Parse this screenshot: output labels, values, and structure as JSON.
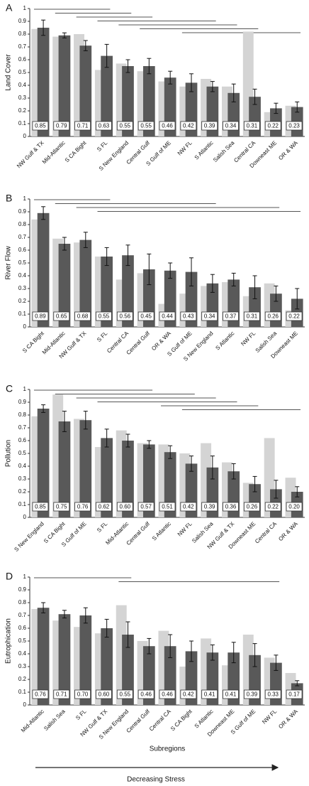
{
  "chart_data": [
    {
      "type": "bar",
      "panel": "A",
      "y_label": "Land Cover",
      "ylim": [
        0,
        1
      ],
      "yticks": [
        0,
        0.1,
        0.2,
        0.3,
        0.4,
        0.5,
        0.6,
        0.7,
        0.8,
        0.9,
        1
      ],
      "categories": [
        "NW Gulf & TX",
        "Mid-Atlantic",
        "S CA Bight",
        "S FL",
        "S New England",
        "Central Gulf",
        "S Gulf of ME",
        "NW FL",
        "S Atlantic",
        "Salish Sea",
        "Central CA",
        "Downeast ME",
        "OR & WA"
      ],
      "series": [
        {
          "color": "#d4d4d4",
          "values": [
            0.84,
            0.78,
            0.8,
            0.52,
            0.57,
            0.51,
            0.43,
            0.39,
            0.45,
            0.39,
            0.82,
            0.19,
            0.24
          ]
        },
        {
          "color": "#595959",
          "values": [
            0.85,
            0.79,
            0.71,
            0.63,
            0.55,
            0.55,
            0.46,
            0.42,
            0.39,
            0.34,
            0.31,
            0.22,
            0.23
          ],
          "errors": [
            0.06,
            0.02,
            0.04,
            0.09,
            0.05,
            0.06,
            0.05,
            0.07,
            0.04,
            0.07,
            0.06,
            0.04,
            0.04
          ],
          "value_labels": [
            "0.85",
            "0.79",
            "0.71",
            "0.63",
            "0.55",
            "0.55",
            "0.46",
            "0.42",
            "0.39",
            "0.34",
            "0.31",
            "0.22",
            "0.23"
          ]
        }
      ],
      "groups": [
        [
          0,
          3
        ],
        [
          1,
          4
        ],
        [
          2,
          5
        ],
        [
          3,
          8
        ],
        [
          4,
          9
        ],
        [
          5,
          10
        ],
        [
          7,
          12
        ]
      ]
    },
    {
      "type": "bar",
      "panel": "B",
      "y_label": "River Flow",
      "ylim": [
        0,
        1
      ],
      "yticks": [
        0,
        0.1,
        0.2,
        0.3,
        0.4,
        0.5,
        0.6,
        0.7,
        0.8,
        0.9,
        1
      ],
      "categories": [
        "S CA Bight",
        "Mid-Atlantic",
        "NW Gulf & TX",
        "S FL",
        "Central CA",
        "Central Gulf",
        "OR & WA",
        "S Gulf of ME",
        "S New England",
        "S Atlantic",
        "NW FL",
        "Salish Sea",
        "Downeast ME"
      ],
      "series": [
        {
          "color": "#d4d4d4",
          "values": [
            0.84,
            0.69,
            0.66,
            0.55,
            0.37,
            0.42,
            0.18,
            0.26,
            0.32,
            0.35,
            0.24,
            0.34,
            0.13
          ]
        },
        {
          "color": "#595959",
          "values": [
            0.89,
            0.65,
            0.68,
            0.55,
            0.56,
            0.45,
            0.44,
            0.43,
            0.34,
            0.37,
            0.31,
            0.26,
            0.22
          ],
          "errors": [
            0.05,
            0.05,
            0.06,
            0.07,
            0.08,
            0.12,
            0.06,
            0.11,
            0.07,
            0.05,
            0.09,
            0.06,
            0.08
          ],
          "value_labels": [
            "0.89",
            "0.65",
            "0.68",
            "0.55",
            "0.56",
            "0.45",
            "0.44",
            "0.43",
            "0.34",
            "0.37",
            "0.31",
            "0.26",
            "0.22"
          ]
        }
      ],
      "groups": [
        [
          0,
          3
        ],
        [
          1,
          8
        ],
        [
          2,
          11
        ],
        [
          3,
          12
        ]
      ]
    },
    {
      "type": "bar",
      "panel": "C",
      "y_label": "Pollution",
      "ylim": [
        0,
        1
      ],
      "yticks": [
        0,
        0.1,
        0.2,
        0.3,
        0.4,
        0.5,
        0.6,
        0.7,
        0.8,
        0.9,
        1
      ],
      "categories": [
        "S New England",
        "S CA Bight",
        "S Gulf of ME",
        "S FL",
        "Mid-Atlantic",
        "Central Gulf",
        "S Atlantic",
        "NW FL",
        "Salish Sea",
        "NW Gulf & TX",
        "Downeast ME",
        "Central CA",
        "OR & WA"
      ],
      "series": [
        {
          "color": "#d4d4d4",
          "values": [
            0.79,
            0.96,
            0.77,
            0.55,
            0.68,
            0.58,
            0.57,
            0.5,
            0.58,
            0.43,
            0.27,
            0.62,
            0.31
          ]
        },
        {
          "color": "#595959",
          "values": [
            0.85,
            0.75,
            0.76,
            0.62,
            0.6,
            0.57,
            0.51,
            0.42,
            0.39,
            0.36,
            0.26,
            0.22,
            0.2
          ],
          "errors": [
            0.03,
            0.08,
            0.07,
            0.07,
            0.05,
            0.03,
            0.05,
            0.06,
            0.09,
            0.06,
            0.06,
            0.07,
            0.04
          ],
          "value_labels": [
            "0.85",
            "0.75",
            "0.76",
            "0.62",
            "0.60",
            "0.57",
            "0.51",
            "0.42",
            "0.39",
            "0.36",
            "0.26",
            "0.22",
            "0.20"
          ]
        }
      ],
      "groups": [
        [
          0,
          5
        ],
        [
          1,
          7
        ],
        [
          2,
          8
        ],
        [
          3,
          9
        ],
        [
          6,
          10
        ],
        [
          7,
          12
        ]
      ]
    },
    {
      "type": "bar",
      "panel": "D",
      "y_label": "Eutrophication",
      "x_label": "Subregions",
      "ylim": [
        0,
        1
      ],
      "yticks": [
        0,
        0.1,
        0.2,
        0.3,
        0.4,
        0.5,
        0.6,
        0.7,
        0.8,
        0.9,
        1
      ],
      "categories": [
        "Mid-Atlantic",
        "Salish Sea",
        "S FL",
        "NW Gulf & TX",
        "S New England",
        "Central Gulf",
        "Central CA",
        "S CA Bight",
        "S Atlantic",
        "Downeast ME",
        "S Gulf of ME",
        "NW FL",
        "OR & WA"
      ],
      "series": [
        {
          "color": "#d4d4d4",
          "values": [
            0.75,
            0.66,
            0.61,
            0.56,
            0.78,
            0.5,
            0.58,
            0.3,
            0.52,
            0.31,
            0.55,
            0.37,
            0.25
          ]
        },
        {
          "color": "#595959",
          "values": [
            0.76,
            0.71,
            0.7,
            0.6,
            0.55,
            0.46,
            0.46,
            0.42,
            0.41,
            0.41,
            0.39,
            0.33,
            0.17
          ],
          "errors": [
            0.04,
            0.03,
            0.06,
            0.07,
            0.1,
            0.06,
            0.09,
            0.08,
            0.06,
            0.08,
            0.09,
            0.06,
            0.02
          ],
          "value_labels": [
            "0.76",
            "0.71",
            "0.70",
            "0.60",
            "0.55",
            "0.46",
            "0.46",
            "0.42",
            "0.41",
            "0.41",
            "0.39",
            "0.33",
            "0.17"
          ]
        }
      ],
      "groups": [
        [
          0,
          4
        ],
        [
          4,
          11
        ]
      ]
    }
  ],
  "annotation": "Decreasing Stress"
}
